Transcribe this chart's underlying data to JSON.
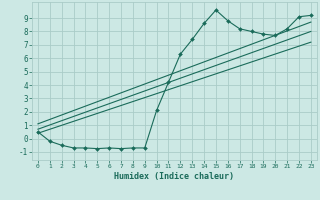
{
  "bg_color": "#cce8e4",
  "grid_color": "#aaccc8",
  "line_color": "#1a6b5a",
  "xlabel": "Humidex (Indice chaleur)",
  "xlim": [
    -0.5,
    23.5
  ],
  "ylim": [
    -1.6,
    10.2
  ],
  "xticks": [
    0,
    1,
    2,
    3,
    4,
    5,
    6,
    7,
    8,
    9,
    10,
    11,
    12,
    13,
    14,
    15,
    16,
    17,
    18,
    19,
    20,
    21,
    22,
    23
  ],
  "yticks": [
    -1,
    0,
    1,
    2,
    3,
    4,
    5,
    6,
    7,
    8,
    9
  ],
  "main_x": [
    0,
    1,
    2,
    3,
    4,
    5,
    6,
    7,
    8,
    9,
    10,
    11,
    12,
    13,
    14,
    15,
    16,
    17,
    18,
    19,
    20,
    21,
    22,
    23
  ],
  "main_y": [
    0.5,
    -0.2,
    -0.5,
    -0.7,
    -0.7,
    -0.75,
    -0.7,
    -0.75,
    -0.7,
    -0.7,
    2.1,
    4.2,
    6.3,
    7.4,
    8.6,
    9.6,
    8.8,
    8.2,
    8.0,
    7.8,
    7.7,
    8.2,
    9.1,
    9.2
  ],
  "line1_x": [
    0,
    23
  ],
  "line1_y": [
    0.4,
    7.2
  ],
  "line2_x": [
    0,
    23
  ],
  "line2_y": [
    0.7,
    8.0
  ],
  "line3_x": [
    0,
    23
  ],
  "line3_y": [
    1.1,
    8.7
  ]
}
